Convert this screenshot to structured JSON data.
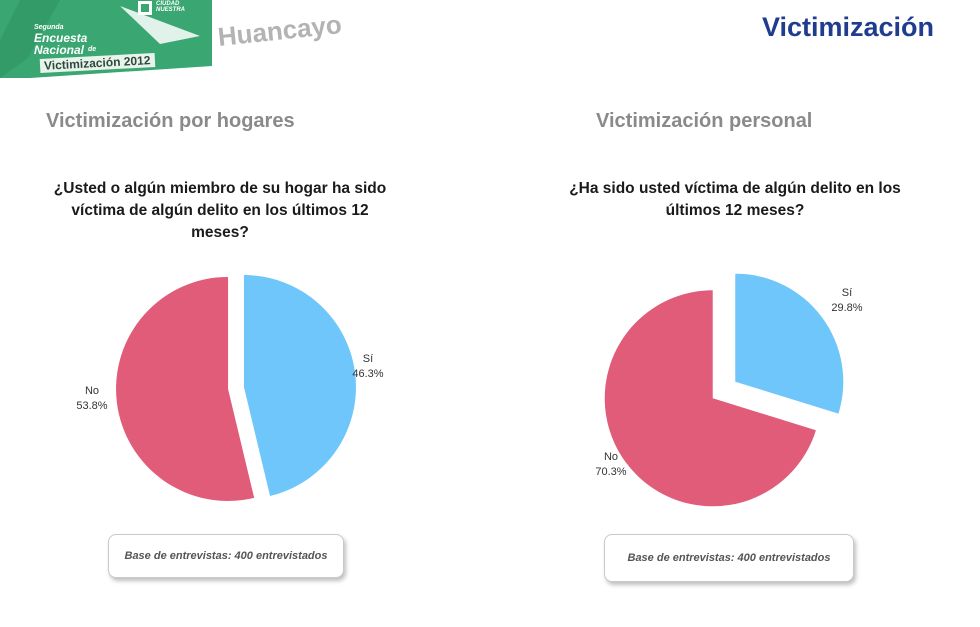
{
  "header": {
    "logo": {
      "brand": "CIUDAD NUESTRA",
      "line1": "Segunda",
      "line2": "Encuesta",
      "line3": "Nacional",
      "line3_suffix": "de",
      "line4": "Victimización 2012"
    },
    "city": "Huancayo",
    "title": "Victimización"
  },
  "colors": {
    "si": "#6ec6fa",
    "no": "#e05c78",
    "title": "#1f3c8f",
    "logo_green": "#3aa672"
  },
  "chart_data": [
    {
      "type": "pie",
      "title": "Victimización por hogares",
      "subtitle": "¿Usted o algún miembro de su hogar ha sido víctima de algún delito en los últimos 12 meses?",
      "question_lines": [
        "¿Usted o algún miembro de su hogar ha sido",
        "víctima de algún delito en los últimos 12",
        "meses?"
      ],
      "slices": [
        {
          "label": "Sí",
          "value": 46.3,
          "display": "46.3%",
          "color": "#6ec6fa"
        },
        {
          "label": "No",
          "value": 53.8,
          "display": "53.8%",
          "color": "#e05c78"
        }
      ],
      "note": "Base de entrevistas: 400 entrevistados"
    },
    {
      "type": "pie",
      "title": "Victimización personal",
      "subtitle": "¿Ha sido usted víctima de algún delito en los últimos 12 meses?",
      "question_lines": [
        "¿Ha sido usted víctima de algún delito en los",
        "últimos 12 meses?"
      ],
      "slices": [
        {
          "label": "Sí",
          "value": 29.8,
          "display": "29.8%",
          "color": "#6ec6fa"
        },
        {
          "label": "No",
          "value": 70.3,
          "display": "70.3%",
          "color": "#e05c78"
        }
      ],
      "note": "Base de entrevistas: 400 entrevistados"
    }
  ]
}
